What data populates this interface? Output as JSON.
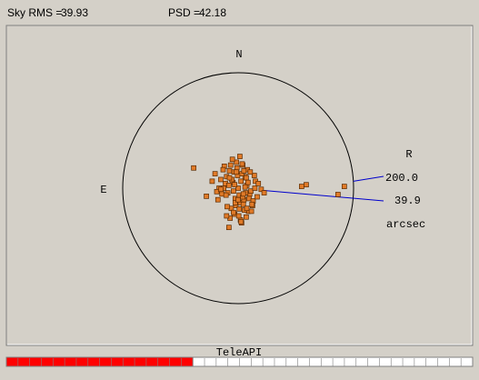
{
  "chart_data": {
    "type": "scatter",
    "sky_rms_label": "Sky RMS =",
    "sky_rms": 39.93,
    "psd_label": "PSD =",
    "psd": 42.18,
    "north": "N",
    "east": "E",
    "radius_label": "R",
    "radius": {
      "value": 200,
      "label": "200.0"
    },
    "rms": 39.9,
    "unit": "arcsec",
    "point_color": "#e07a28",
    "line_color": "#0000cc",
    "x": [
      -77,
      -55,
      110,
      118,
      173,
      184,
      -16,
      0,
      5,
      -8,
      12,
      -15,
      20,
      3,
      -22,
      8,
      -5,
      15,
      -30,
      25,
      -12,
      30,
      -3,
      10,
      -18,
      6,
      -25,
      18,
      -10,
      2,
      35,
      -35,
      14,
      -6,
      22,
      -20,
      9,
      -14,
      28,
      -2,
      4,
      -28,
      16,
      -9,
      11,
      -40,
      40,
      -4,
      7,
      -16,
      19,
      -24,
      1,
      13,
      -11,
      26,
      -7,
      33,
      -33,
      6,
      -1,
      17,
      -19,
      23,
      -26,
      8,
      -13,
      3,
      -37,
      29,
      12,
      -5,
      21,
      -21,
      -8,
      15,
      45,
      -45,
      0,
      10,
      -15,
      5,
      24,
      -30,
      -3,
      -6,
      9,
      -20,
      14,
      2
    ],
    "y": [
      35,
      -14,
      3,
      6,
      -11,
      3,
      -68,
      0,
      12,
      -5,
      20,
      30,
      -10,
      -25,
      8,
      40,
      -18,
      5,
      15,
      -30,
      -35,
      12,
      45,
      -20,
      -8,
      25,
      0,
      -40,
      50,
      -12,
      8,
      -20,
      18,
      -45,
      -5,
      20,
      -28,
      -52,
      22,
      35,
      -55,
      -10,
      32,
      10,
      -38,
      25,
      -2,
      -30,
      42,
      5,
      -18,
      38,
      -48,
      -8,
      15,
      -22,
      28,
      -15,
      0,
      -60,
      22,
      10,
      -32,
      -40,
      32,
      -15,
      40,
      55,
      -6,
      0,
      2,
      -25,
      28,
      -12,
      -42,
      -35,
      -8,
      12,
      -20,
      30,
      18,
      -58,
      -28,
      -2,
      28,
      6,
      -10,
      -48,
      -50,
      -36
    ],
    "app_name": "TeleAPI",
    "progress_percent": 40,
    "progress_color": "#ff0000"
  }
}
